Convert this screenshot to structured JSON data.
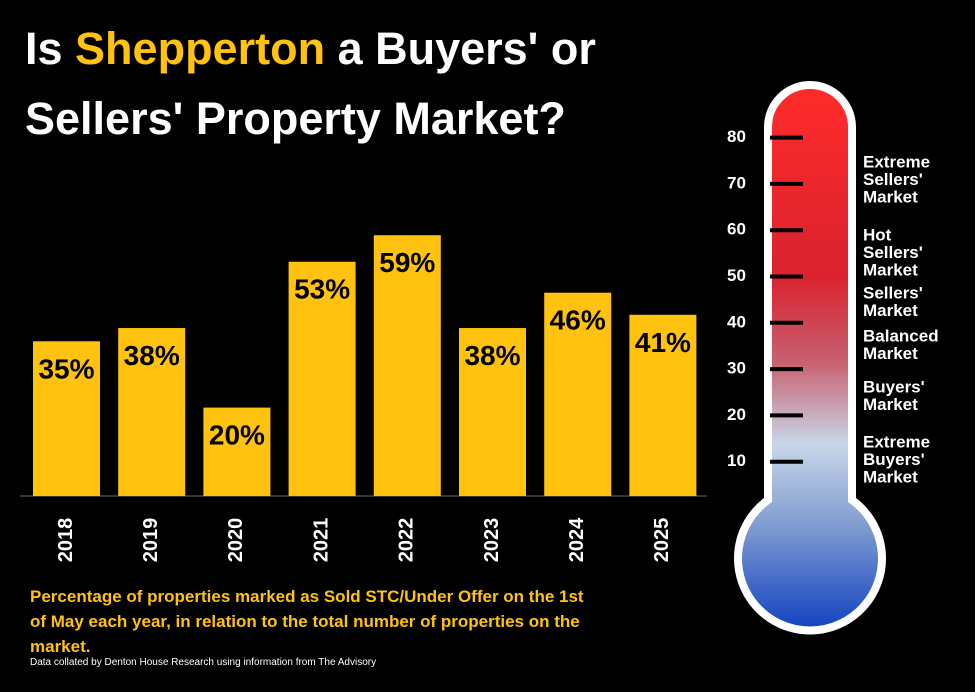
{
  "title": {
    "line1_before": "Is ",
    "highlight": "Shepperton",
    "line1_after": " a Buyers' or",
    "line2": "Sellers' Property Market?"
  },
  "chart_data": {
    "type": "bar",
    "categories": [
      "2018",
      "2019",
      "2020",
      "2021",
      "2022",
      "2023",
      "2024",
      "2025"
    ],
    "values": [
      35,
      38,
      20,
      53,
      59,
      38,
      46,
      41
    ],
    "value_labels": [
      "35%",
      "38%",
      "20%",
      "53%",
      "59%",
      "38%",
      "46%",
      "41%"
    ],
    "color": "#ffc20e"
  },
  "thermometer": {
    "ticks": [
      10,
      20,
      30,
      40,
      50,
      60,
      70,
      80
    ],
    "zones": [
      [
        "Extreme",
        "Sellers'",
        "Market"
      ],
      [
        "Hot",
        "Sellers'",
        "Market"
      ],
      [
        "Sellers'",
        "Market"
      ],
      [
        "Balanced",
        "Market"
      ],
      [
        "Buyers'",
        "Market"
      ],
      [
        "Extreme",
        "Buyers'",
        "Market"
      ]
    ]
  },
  "caption": "Percentage of properties marked as Sold STC/Under Offer on the 1st of May each year, in relation to the total number of properties on the market.",
  "source": "Data collated by Denton House Research using information from The Advisory"
}
